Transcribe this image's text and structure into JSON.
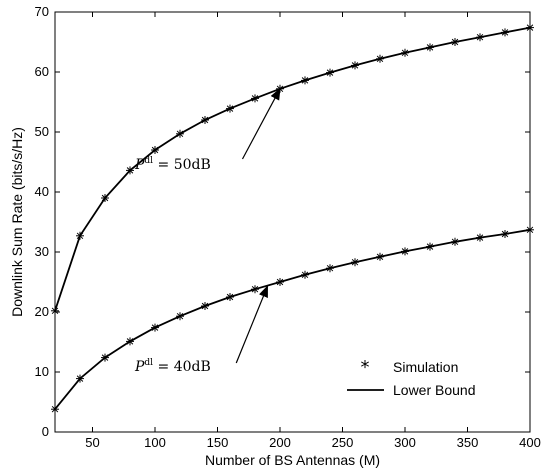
{
  "chart_data": {
    "type": "line",
    "title": "",
    "xlabel": "Number of BS Antennas (M)",
    "ylabel": "Downlink Sum Rate (bits/s/Hz)",
    "xlim": [
      20,
      400
    ],
    "ylim": [
      0,
      70
    ],
    "xticks": [
      50,
      100,
      150,
      200,
      250,
      300,
      350,
      400
    ],
    "yticks": [
      0,
      10,
      20,
      30,
      40,
      50,
      60,
      70
    ],
    "grid": false,
    "legend": {
      "position": "bottom-right",
      "entries": [
        {
          "label": "Simulation",
          "marker": "asterisk"
        },
        {
          "label": "Lower Bound",
          "marker": "line"
        }
      ]
    },
    "x": [
      20,
      40,
      60,
      80,
      100,
      120,
      140,
      160,
      180,
      200,
      220,
      240,
      260,
      280,
      300,
      320,
      340,
      360,
      380,
      400
    ],
    "series": [
      {
        "annotation_prefix": "P",
        "annotation_sup": "dl",
        "annotation_value": " = 50dB",
        "simulation": [
          20.2,
          32.7,
          39.0,
          43.6,
          47.0,
          49.7,
          52.0,
          53.9,
          55.6,
          57.2,
          58.6,
          59.9,
          61.1,
          62.2,
          63.2,
          64.1,
          65.0,
          65.8,
          66.6,
          67.4
        ],
        "lower_bound": [
          20.2,
          32.7,
          39.0,
          43.6,
          47.0,
          49.7,
          52.0,
          53.9,
          55.6,
          57.2,
          58.6,
          59.9,
          61.1,
          62.2,
          63.2,
          64.1,
          65.0,
          65.8,
          66.6,
          67.4
        ],
        "annotation_arrow_target_x": 200,
        "annotation_arrow_target_y": 57.2
      },
      {
        "annotation_prefix": "P",
        "annotation_sup": "dl",
        "annotation_value": " = 40dB",
        "simulation": [
          3.8,
          8.9,
          12.4,
          15.1,
          17.4,
          19.3,
          21.0,
          22.5,
          23.8,
          25.0,
          26.2,
          27.3,
          28.3,
          29.2,
          30.1,
          30.9,
          31.7,
          32.4,
          33.0,
          33.7
        ],
        "lower_bound": [
          3.8,
          8.9,
          12.4,
          15.1,
          17.4,
          19.3,
          21.0,
          22.5,
          23.8,
          25.0,
          26.2,
          27.3,
          28.3,
          29.2,
          30.1,
          30.9,
          31.7,
          32.4,
          33.0,
          33.7
        ],
        "annotation_arrow_target_x": 190,
        "annotation_arrow_target_y": 24.3
      }
    ]
  }
}
